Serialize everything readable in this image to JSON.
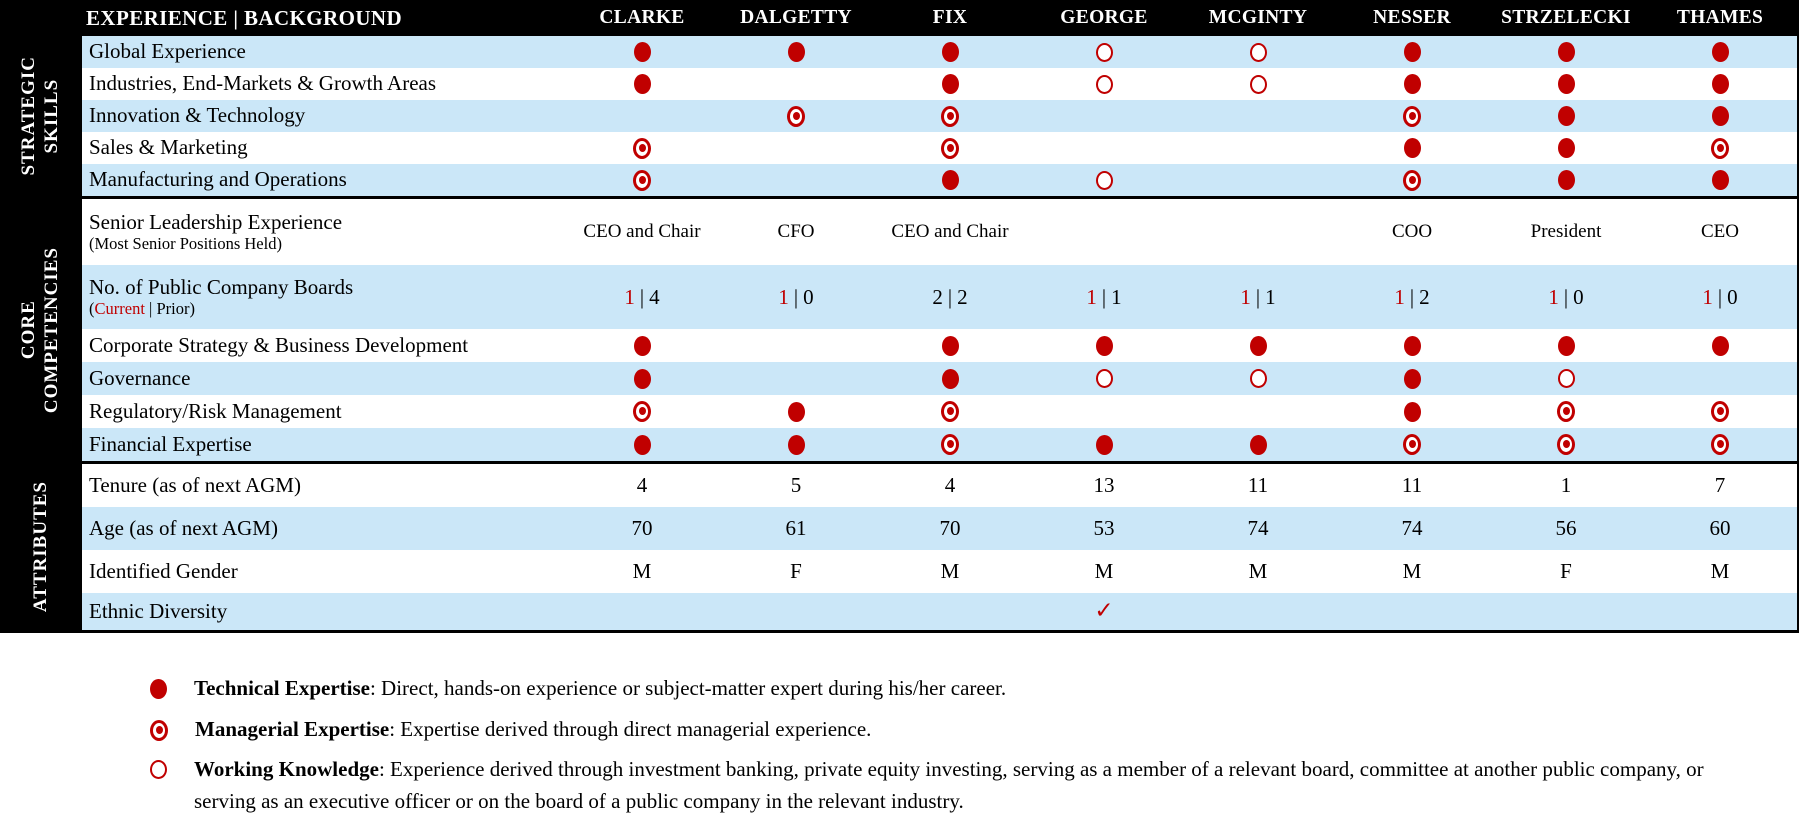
{
  "colors": {
    "accent_red": "#c00000",
    "row_blue": "#cbe7f8",
    "header_black": "#000000"
  },
  "header": {
    "row_label": "EXPERIENCE | BACKGROUND",
    "columns": [
      "CLARKE",
      "DALGETTY",
      "FIX",
      "GEORGE",
      "MCGINTY",
      "NESSER",
      "STRZELECKI",
      "THAMES"
    ]
  },
  "sections": [
    {
      "id": "strategic-skills",
      "label": "STRATEGIC\nSKILLS",
      "rows": [
        {
          "kind": "skill",
          "label": "Global Experience",
          "cells": [
            "filled",
            "filled",
            "filled",
            "open",
            "open",
            "filled",
            "filled",
            "filled"
          ]
        },
        {
          "kind": "skill",
          "label": "Industries, End-Markets & Growth Areas",
          "cells": [
            "filled",
            "",
            "filled",
            "open",
            "open",
            "filled",
            "filled",
            "filled"
          ]
        },
        {
          "kind": "skill",
          "label": "Innovation & Technology",
          "cells": [
            "",
            "bull",
            "bull",
            "",
            "",
            "bull",
            "filled",
            "filled"
          ]
        },
        {
          "kind": "skill",
          "label": "Sales & Marketing",
          "cells": [
            "bull",
            "",
            "bull",
            "",
            "",
            "filled",
            "filled",
            "bull"
          ]
        },
        {
          "kind": "skill",
          "label": "Manufacturing and Operations",
          "cells": [
            "bull",
            "",
            "filled",
            "open",
            "",
            "bull",
            "filled",
            "filled"
          ]
        }
      ]
    },
    {
      "id": "core-competencies",
      "label": "CORE\nCOMPETENCIES",
      "rows": [
        {
          "kind": "leader",
          "label": "Senior Leadership Experience",
          "sublabel": "(Most Senior Positions Held)",
          "cells": [
            "CEO and Chair",
            "CFO",
            "CEO and Chair",
            "",
            "",
            "COO",
            "President",
            "CEO"
          ]
        },
        {
          "kind": "boards",
          "label": "No. of Public Company Boards",
          "sub_pre": "(",
          "sub_red": "Current",
          "sub_post": " | Prior)",
          "sep": "|",
          "cells": [
            {
              "cur": "1",
              "prior": "4",
              "cur_red": true
            },
            {
              "cur": "1",
              "prior": "0",
              "cur_red": true
            },
            {
              "cur": "2",
              "prior": "2",
              "cur_red": false
            },
            {
              "cur": "1",
              "prior": "1",
              "cur_red": true
            },
            {
              "cur": "1",
              "prior": "1",
              "cur_red": true
            },
            {
              "cur": "1",
              "prior": "2",
              "cur_red": true
            },
            {
              "cur": "1",
              "prior": "0",
              "cur_red": true
            },
            {
              "cur": "1",
              "prior": "0",
              "cur_red": true
            }
          ]
        },
        {
          "kind": "comp",
          "label": "Corporate Strategy & Business Development",
          "cells": [
            "filled",
            "",
            "filled",
            "filled",
            "filled",
            "filled",
            "filled",
            "filled"
          ]
        },
        {
          "kind": "comp",
          "label": "Governance",
          "cells": [
            "filled",
            "",
            "filled",
            "open",
            "open",
            "filled",
            "open",
            ""
          ]
        },
        {
          "kind": "comp",
          "label": "Regulatory/Risk Management",
          "cells": [
            "bull",
            "filled",
            "bull",
            "",
            "",
            "filled",
            "bull",
            "bull"
          ]
        },
        {
          "kind": "comp",
          "label": "Financial Expertise",
          "cells": [
            "filled",
            "filled",
            "bull",
            "filled",
            "filled",
            "bull",
            "bull",
            "bull"
          ]
        }
      ]
    },
    {
      "id": "attributes",
      "label": "ATTRIBUTES",
      "rows": [
        {
          "kind": "attr",
          "label": "Tenure (as of next AGM)",
          "cells": [
            "4",
            "5",
            "4",
            "13",
            "11",
            "11",
            "1",
            "7"
          ]
        },
        {
          "kind": "attr",
          "label": "Age (as of next AGM)",
          "cells": [
            "70",
            "61",
            "70",
            "53",
            "74",
            "74",
            "56",
            "60"
          ]
        },
        {
          "kind": "attr",
          "label": "Identified Gender",
          "cells": [
            "M",
            "F",
            "M",
            "M",
            "M",
            "M",
            "F",
            "M"
          ]
        },
        {
          "kind": "ethnic",
          "label": "Ethnic Diversity",
          "cells": [
            "",
            "",
            "",
            "check",
            "",
            "",
            "",
            ""
          ]
        }
      ]
    }
  ],
  "legend": {
    "items": [
      {
        "symbol": "filled",
        "term": "Technical Expertise",
        "desc": ": Direct, hands-on experience or subject-matter expert during his/her career."
      },
      {
        "symbol": "bull",
        "term": "Managerial Expertise",
        "desc": ": Expertise derived through direct managerial experience."
      },
      {
        "symbol": "open",
        "term": "Working Knowledge",
        "desc": ": Experience derived through investment banking, private equity investing, serving as a member of a relevant board, committee at another public company, or serving as an executive officer or on the board of a public company in the relevant industry."
      }
    ]
  }
}
